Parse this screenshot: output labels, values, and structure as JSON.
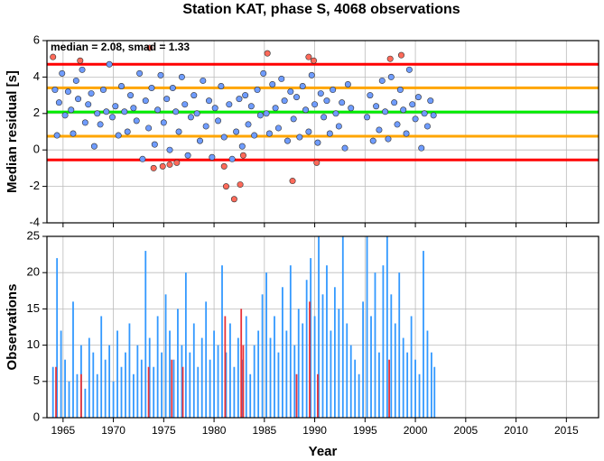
{
  "title": "Station KAT, phase S, 4068 observations",
  "chart_data": [
    {
      "type": "scatter",
      "ylabel": "Median residual [s]",
      "annotation": "median = 2.08, smad = 1.33",
      "xlim": [
        1963.4,
        2018.2
      ],
      "ylim": [
        -4,
        6
      ],
      "xticks": [
        1965,
        1970,
        1975,
        1980,
        1985,
        1990,
        1995,
        2000,
        2005,
        2010,
        2015
      ],
      "yticks": [
        -4,
        -2,
        0,
        2,
        4,
        6
      ],
      "grid": true,
      "hlines": [
        {
          "value": 4.7,
          "color": "#ff0000"
        },
        {
          "value": 3.41,
          "color": "#ffa500"
        },
        {
          "value": 2.08,
          "color": "#00ee00"
        },
        {
          "value": 0.75,
          "color": "#ffa500"
        },
        {
          "value": -0.55,
          "color": "#ff0000"
        }
      ],
      "series": [
        {
          "color": "#6f9cff",
          "x": [
            1964.2,
            1964.4,
            1964.6,
            1964.9,
            1965.2,
            1965.5,
            1965.8,
            1966.0,
            1966.3,
            1966.5,
            1966.9,
            1967.2,
            1967.5,
            1967.8,
            1968.1,
            1968.4,
            1968.7,
            1969.0,
            1969.3,
            1969.6,
            1969.9,
            1970.2,
            1970.5,
            1970.8,
            1971.1,
            1971.4,
            1971.7,
            1972.0,
            1972.3,
            1972.6,
            1972.9,
            1973.2,
            1973.5,
            1973.8,
            1974.1,
            1974.4,
            1974.7,
            1975.0,
            1975.3,
            1975.6,
            1975.9,
            1976.2,
            1976.5,
            1976.8,
            1977.1,
            1977.4,
            1977.7,
            1978.0,
            1978.3,
            1978.6,
            1978.9,
            1979.2,
            1979.5,
            1979.8,
            1980.1,
            1980.4,
            1980.7,
            1981.0,
            1981.5,
            1981.8,
            1982.2,
            1982.5,
            1982.8,
            1983.1,
            1983.4,
            1983.7,
            1984.0,
            1984.3,
            1984.6,
            1984.9,
            1985.2,
            1985.5,
            1985.8,
            1986.1,
            1986.4,
            1986.7,
            1987.0,
            1987.3,
            1987.6,
            1987.9,
            1988.2,
            1988.5,
            1988.8,
            1989.1,
            1989.4,
            1989.7,
            1990.0,
            1990.3,
            1990.6,
            1990.9,
            1991.2,
            1991.5,
            1991.8,
            1992.1,
            1992.4,
            1992.7,
            1993.0,
            1993.3,
            1993.6,
            1995.2,
            1995.5,
            1995.8,
            1996.1,
            1996.4,
            1996.7,
            1997.0,
            1997.3,
            1997.6,
            1997.9,
            1998.2,
            1998.5,
            1998.8,
            1999.1,
            1999.4,
            1999.7,
            2000.0,
            2000.3,
            2000.6,
            2000.9,
            2001.2,
            2001.5,
            2001.8
          ],
          "values": [
            3.3,
            0.8,
            2.6,
            4.2,
            1.9,
            3.2,
            2.2,
            0.9,
            3.8,
            2.8,
            4.4,
            1.5,
            2.5,
            3.1,
            0.2,
            2.0,
            1.4,
            3.3,
            2.1,
            4.7,
            1.8,
            2.4,
            0.8,
            3.5,
            2.1,
            1.0,
            3.0,
            2.3,
            1.6,
            4.2,
            -0.5,
            2.7,
            1.2,
            3.4,
            0.3,
            2.2,
            4.1,
            1.5,
            2.8,
            0.0,
            3.4,
            2.1,
            1.0,
            4.0,
            2.5,
            -0.3,
            1.8,
            3.0,
            2.0,
            0.5,
            3.8,
            1.3,
            2.7,
            -0.4,
            2.3,
            1.6,
            3.5,
            0.7,
            2.5,
            -0.5,
            1.0,
            2.8,
            0.2,
            3.0,
            1.4,
            2.4,
            0.8,
            3.3,
            1.9,
            4.2,
            2.0,
            0.9,
            3.6,
            2.3,
            1.2,
            3.9,
            2.7,
            0.5,
            3.2,
            1.7,
            2.9,
            0.7,
            3.5,
            2.2,
            1.0,
            4.1,
            2.5,
            0.4,
            3.1,
            1.8,
            2.7,
            0.9,
            3.3,
            2.0,
            1.3,
            2.6,
            0.1,
            3.6,
            2.3,
            1.8,
            3.0,
            0.5,
            2.4,
            1.1,
            3.8,
            2.1,
            0.6,
            4.0,
            2.6,
            1.4,
            3.3,
            2.2,
            0.9,
            4.4,
            2.5,
            1.7,
            2.9,
            0.1,
            2.0,
            1.3,
            2.7,
            1.9
          ]
        },
        {
          "color": "#ff6a5a",
          "x": [
            1964.0,
            1966.7,
            1973.6,
            1985.3,
            1989.4,
            1989.9,
            1997.5,
            1998.6,
            1974.0,
            1974.9,
            1975.6,
            1976.3,
            1981.0,
            1981.2,
            1982.0,
            1982.6,
            1982.9,
            1987.8,
            1990.2
          ],
          "values": [
            5.1,
            4.9,
            5.6,
            5.3,
            5.1,
            4.9,
            5.0,
            5.2,
            -1.0,
            -0.9,
            -0.8,
            -0.7,
            -0.9,
            -2.0,
            -2.7,
            -1.9,
            -0.3,
            -1.7,
            -0.7
          ]
        }
      ]
    },
    {
      "type": "bar",
      "ylabel": "Observations",
      "xlabel": "Year",
      "xlim": [
        1963.4,
        2018.2
      ],
      "ylim": [
        0,
        25
      ],
      "xticks": [
        1965,
        1970,
        1975,
        1980,
        1985,
        1990,
        1995,
        2000,
        2005,
        2010,
        2015
      ],
      "yticks": [
        0,
        5,
        10,
        15,
        20,
        25
      ],
      "grid": true,
      "series": [
        {
          "color": "#3399ff",
          "x": [
            1964.0,
            1964.4,
            1964.8,
            1965.2,
            1965.6,
            1966.0,
            1966.4,
            1966.8,
            1967.2,
            1967.6,
            1968.0,
            1968.4,
            1968.8,
            1969.2,
            1969.6,
            1970.0,
            1970.4,
            1970.8,
            1971.2,
            1971.6,
            1972.0,
            1972.4,
            1972.8,
            1973.2,
            1973.6,
            1974.0,
            1974.4,
            1974.8,
            1975.2,
            1975.6,
            1976.0,
            1976.4,
            1976.8,
            1977.2,
            1977.6,
            1978.0,
            1978.4,
            1978.8,
            1979.2,
            1979.6,
            1980.0,
            1980.4,
            1980.8,
            1981.2,
            1981.6,
            1982.0,
            1982.4,
            1982.8,
            1983.2,
            1983.6,
            1984.0,
            1984.4,
            1984.8,
            1985.2,
            1985.6,
            1986.0,
            1986.4,
            1986.8,
            1987.2,
            1987.6,
            1988.0,
            1988.4,
            1988.8,
            1989.2,
            1989.6,
            1990.0,
            1990.4,
            1990.8,
            1991.2,
            1991.6,
            1992.0,
            1992.4,
            1992.8,
            1993.2,
            1993.6,
            1994.0,
            1994.4,
            1994.8,
            1995.2,
            1995.6,
            1996.0,
            1996.4,
            1996.8,
            1997.2,
            1997.6,
            1998.0,
            1998.4,
            1998.8,
            1999.2,
            1999.6,
            2000.0,
            2000.4,
            2000.8,
            2001.2,
            2001.6,
            2001.9
          ],
          "values": [
            7,
            22,
            12,
            8,
            5,
            16,
            6,
            10,
            4,
            11,
            9,
            6,
            14,
            8,
            10,
            5,
            12,
            7,
            9,
            13,
            6,
            10,
            8,
            23,
            11,
            7,
            14,
            9,
            17,
            12,
            8,
            15,
            10,
            20,
            9,
            13,
            7,
            11,
            16,
            8,
            12,
            10,
            21,
            9,
            13,
            7,
            11,
            8,
            14,
            6,
            10,
            12,
            17,
            20,
            11,
            14,
            9,
            18,
            12,
            21,
            10,
            15,
            13,
            19,
            22,
            14,
            25,
            17,
            21,
            12,
            18,
            15,
            25,
            13,
            10,
            8,
            6,
            16,
            25,
            14,
            20,
            9,
            21,
            25,
            17,
            13,
            20,
            11,
            9,
            14,
            8,
            6,
            23,
            12,
            9,
            7
          ]
        },
        {
          "color": "#e8333a",
          "x": [
            1964.3,
            1966.8,
            1973.5,
            1975.8,
            1976.9,
            1981.1,
            1982.7,
            1982.9,
            1988.2,
            1989.5,
            1990.3,
            1997.4
          ],
          "values": [
            7,
            6,
            7,
            8,
            7,
            14,
            15,
            10,
            6,
            16,
            6,
            8
          ]
        }
      ]
    }
  ]
}
